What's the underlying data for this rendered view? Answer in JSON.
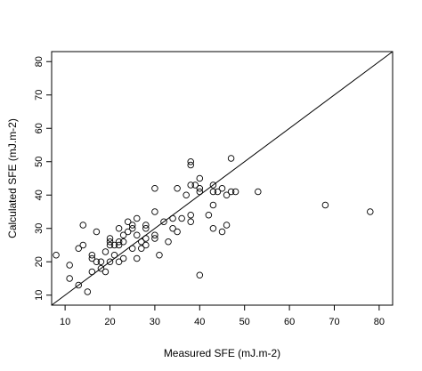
{
  "chart_data": {
    "type": "scatter",
    "title": "",
    "xlabel": "Measured SFE (mJ.m-2)",
    "ylabel": "Calculated SFE (mJ.m-2)",
    "xlim": [
      7,
      83
    ],
    "ylim": [
      7,
      83
    ],
    "x_ticks": [
      10,
      20,
      30,
      40,
      50,
      60,
      70,
      80
    ],
    "y_ticks": [
      10,
      20,
      30,
      40,
      50,
      60,
      70,
      80
    ],
    "grid": false,
    "legend": "none",
    "reference_line": {
      "label": "",
      "slope": 1,
      "intercept": 0
    },
    "marker": "open-circle",
    "colors": {
      "points": "#000000",
      "line": "#000000",
      "frame": "#000000"
    },
    "series": [
      {
        "name": "",
        "points": [
          [
            8,
            22
          ],
          [
            11,
            19
          ],
          [
            11,
            15
          ],
          [
            13,
            13
          ],
          [
            13,
            24
          ],
          [
            14,
            31
          ],
          [
            14,
            25
          ],
          [
            15,
            11
          ],
          [
            16,
            21
          ],
          [
            16,
            17
          ],
          [
            16,
            22
          ],
          [
            17,
            20
          ],
          [
            17,
            29
          ],
          [
            18,
            20
          ],
          [
            18,
            18
          ],
          [
            19,
            17
          ],
          [
            19,
            23
          ],
          [
            20,
            26
          ],
          [
            20,
            25
          ],
          [
            20,
            27
          ],
          [
            20,
            20
          ],
          [
            21,
            25
          ],
          [
            21,
            22
          ],
          [
            22,
            25
          ],
          [
            22,
            26
          ],
          [
            22,
            30
          ],
          [
            22,
            20
          ],
          [
            23,
            21
          ],
          [
            23,
            28
          ],
          [
            23,
            26
          ],
          [
            24,
            32
          ],
          [
            24,
            29
          ],
          [
            25,
            30
          ],
          [
            25,
            31
          ],
          [
            25,
            24
          ],
          [
            26,
            33
          ],
          [
            26,
            28
          ],
          [
            26,
            21
          ],
          [
            27,
            24
          ],
          [
            27,
            26
          ],
          [
            28,
            31
          ],
          [
            28,
            30
          ],
          [
            28,
            27
          ],
          [
            28,
            25
          ],
          [
            30,
            42
          ],
          [
            30,
            35
          ],
          [
            30,
            28
          ],
          [
            30,
            27
          ],
          [
            31,
            22
          ],
          [
            32,
            32
          ],
          [
            33,
            26
          ],
          [
            34,
            33
          ],
          [
            34,
            30
          ],
          [
            35,
            42
          ],
          [
            35,
            29
          ],
          [
            36,
            33
          ],
          [
            37,
            40
          ],
          [
            38,
            50
          ],
          [
            38,
            49
          ],
          [
            38,
            43
          ],
          [
            38,
            34
          ],
          [
            38,
            32
          ],
          [
            39,
            43
          ],
          [
            40,
            42
          ],
          [
            40,
            41
          ],
          [
            40,
            45
          ],
          [
            40,
            16
          ],
          [
            42,
            34
          ],
          [
            43,
            43
          ],
          [
            43,
            41
          ],
          [
            43,
            37
          ],
          [
            43,
            30
          ],
          [
            44,
            41
          ],
          [
            45,
            42
          ],
          [
            45,
            29
          ],
          [
            46,
            40
          ],
          [
            46,
            31
          ],
          [
            47,
            51
          ],
          [
            47,
            41
          ],
          [
            48,
            41
          ],
          [
            53,
            41
          ],
          [
            68,
            37
          ],
          [
            78,
            35
          ]
        ]
      }
    ]
  }
}
